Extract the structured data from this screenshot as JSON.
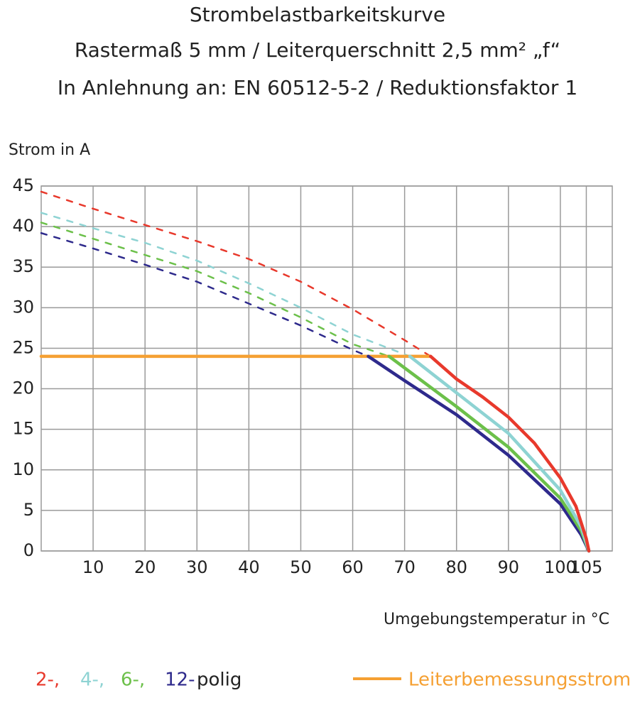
{
  "chart_data": {
    "type": "line",
    "title": [
      "Strombelastbarkeitskurve",
      "Rastermaß 5 mm / Leiterquerschnitt 2,5 mm² „f“",
      "In Anlehnung an: EN 60512-5-2 / Reduktionsfaktor 1"
    ],
    "y_label": "Strom in A",
    "x_label": "Umgebungstemperatur in °C",
    "xlim": [
      0,
      110
    ],
    "ylim": [
      0,
      45
    ],
    "xticks": [
      10,
      20,
      30,
      40,
      50,
      60,
      70,
      80,
      90,
      100,
      105
    ],
    "yticks": [
      0,
      5,
      10,
      15,
      20,
      25,
      30,
      35,
      40,
      45
    ],
    "grid": true,
    "series": [
      {
        "color": "#e8392c",
        "line_style": "dashed",
        "x": [
          0,
          10,
          20,
          30,
          40,
          50,
          60,
          70,
          75
        ],
        "values": [
          44.3,
          42.2,
          40.2,
          38.2,
          36.0,
          33.2,
          29.8,
          26.0,
          24.0
        ]
      },
      {
        "color": "#8ed3d3",
        "line_style": "dashed",
        "x": [
          0,
          10,
          20,
          30,
          40,
          50,
          60,
          71
        ],
        "values": [
          41.7,
          39.8,
          38.0,
          35.8,
          33.0,
          30.0,
          26.7,
          24.0
        ]
      },
      {
        "color": "#6cc04a",
        "line_style": "dashed",
        "x": [
          0,
          10,
          20,
          30,
          40,
          50,
          60,
          67
        ],
        "values": [
          40.5,
          38.5,
          36.5,
          34.5,
          31.8,
          28.8,
          25.5,
          24.0
        ]
      },
      {
        "color": "#2e2a8c",
        "line_style": "dashed",
        "x": [
          0,
          10,
          20,
          30,
          40,
          50,
          60,
          63
        ],
        "values": [
          39.2,
          37.3,
          35.3,
          33.2,
          30.5,
          27.8,
          24.8,
          24.0
        ]
      },
      {
        "color": "#f5a033",
        "line_style": "solid",
        "x": [
          0,
          75
        ],
        "values": [
          24,
          24
        ]
      },
      {
        "color": "#2e2a8c",
        "line_style": "solid",
        "x": [
          63,
          70,
          80,
          90,
          100,
          104,
          105.5
        ],
        "values": [
          24.0,
          21.0,
          16.8,
          11.8,
          5.8,
          2.0,
          0
        ]
      },
      {
        "color": "#6cc04a",
        "line_style": "solid",
        "x": [
          67,
          80,
          90,
          100,
          104,
          105.5
        ],
        "values": [
          24.0,
          17.8,
          12.8,
          6.5,
          2.5,
          0
        ]
      },
      {
        "color": "#8ed3d3",
        "line_style": "solid",
        "x": [
          71,
          80,
          90,
          100,
          104,
          105.5
        ],
        "values": [
          24.0,
          19.5,
          14.5,
          7.5,
          3.0,
          0
        ]
      },
      {
        "color": "#e8392c",
        "line_style": "solid",
        "x": [
          75,
          80,
          85,
          90,
          95,
          100,
          103,
          105,
          105.5
        ],
        "values": [
          24.0,
          21.2,
          19.0,
          16.5,
          13.3,
          9.0,
          5.5,
          1.5,
          0
        ]
      }
    ],
    "legend": [
      {
        "label": "2-,",
        "color": "#e8392c"
      },
      {
        "label": "4-,",
        "color": "#8ed3d3"
      },
      {
        "label": "6-,",
        "color": "#6cc04a"
      },
      {
        "label": "12-",
        "color": "#2e2a8c"
      },
      {
        "label": "polig",
        "color": "#222222"
      },
      {
        "label": "Leiterbemessungsstrom",
        "color": "#f5a033",
        "swatch": true
      }
    ]
  }
}
